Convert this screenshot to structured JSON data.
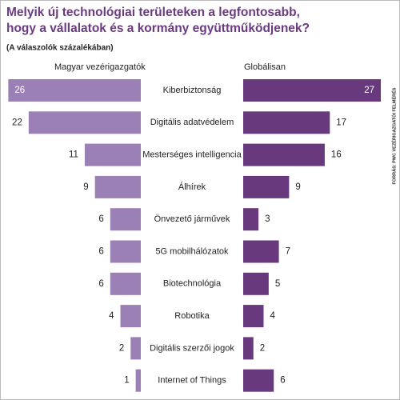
{
  "chart_data": {
    "type": "butterfly",
    "title": [
      "Melyik új technológiai területeken a legfontosabb,",
      "hogy a vállalatok és a kormány együttműködjenek?"
    ],
    "subtitle": "(A válaszolók százalékában)",
    "source": "FORRÁS: PWC VEZÉRIGAZGATÓI FELMÉRÉS",
    "categories": [
      "Kiberbiztonság",
      "Digitális adatvédelem",
      "Mesterséges intelligencia",
      "Álhírek",
      "Önvezető járművek",
      "5G mobilhálózatok",
      "Biotechnológia",
      "Robotika",
      "Digitális szerzői jogok",
      "Internet of Things"
    ],
    "series": [
      {
        "name": "Magyar vezérigazgatók",
        "color": "#9a80b4",
        "values": [
          26,
          22,
          11,
          9,
          6,
          6,
          6,
          4,
          2,
          1
        ]
      },
      {
        "name": "Globálisan",
        "color": "#683a7d",
        "values": [
          27,
          17,
          16,
          9,
          3,
          7,
          5,
          4,
          2,
          6
        ]
      }
    ]
  }
}
